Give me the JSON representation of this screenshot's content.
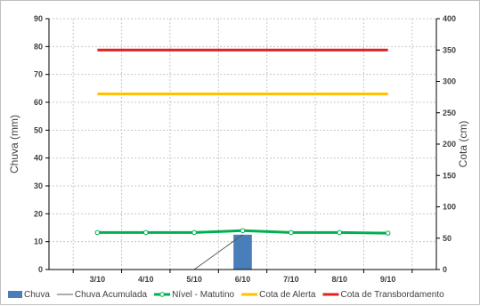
{
  "chart_data": {
    "type": "bar",
    "categories": [
      "3/10",
      "4/10",
      "5/10",
      "6/10",
      "7/10",
      "8/10",
      "9/10"
    ],
    "y_left": {
      "label": "Chuva (mm)",
      "lim": [
        0,
        90
      ],
      "ticks": [
        0,
        10,
        20,
        30,
        40,
        50,
        60,
        70,
        80,
        90
      ]
    },
    "y_right": {
      "label": "Cota (cm)",
      "lim": [
        0,
        400
      ],
      "ticks": [
        0,
        50,
        100,
        150,
        200,
        250,
        300,
        350,
        400
      ]
    },
    "grid": true,
    "legend_position": "bottom",
    "series": [
      {
        "name": "Chuva",
        "kind": "bar",
        "axis": "left",
        "color": "#4a7ebb",
        "values": [
          0,
          0,
          0,
          12.5,
          0,
          0,
          0
        ]
      },
      {
        "name": "Chuva Acumulada",
        "kind": "line",
        "axis": "left",
        "color": "#595959",
        "values": [
          null,
          null,
          0,
          12.5,
          null,
          null,
          null
        ]
      },
      {
        "name": "Nível - Matutino",
        "kind": "line-markers",
        "axis": "right",
        "color": "#00b050",
        "values": [
          59,
          59,
          59,
          62,
          59,
          59,
          58
        ]
      },
      {
        "name": "Cota de Alerta",
        "kind": "line",
        "axis": "right",
        "color": "#ffc000",
        "values": [
          280,
          280,
          280,
          280,
          280,
          280,
          280
        ]
      },
      {
        "name": "Cota de Transbordamento",
        "kind": "line",
        "axis": "right",
        "color": "#e02020",
        "values": [
          350,
          350,
          350,
          350,
          350,
          350,
          350
        ]
      }
    ]
  }
}
